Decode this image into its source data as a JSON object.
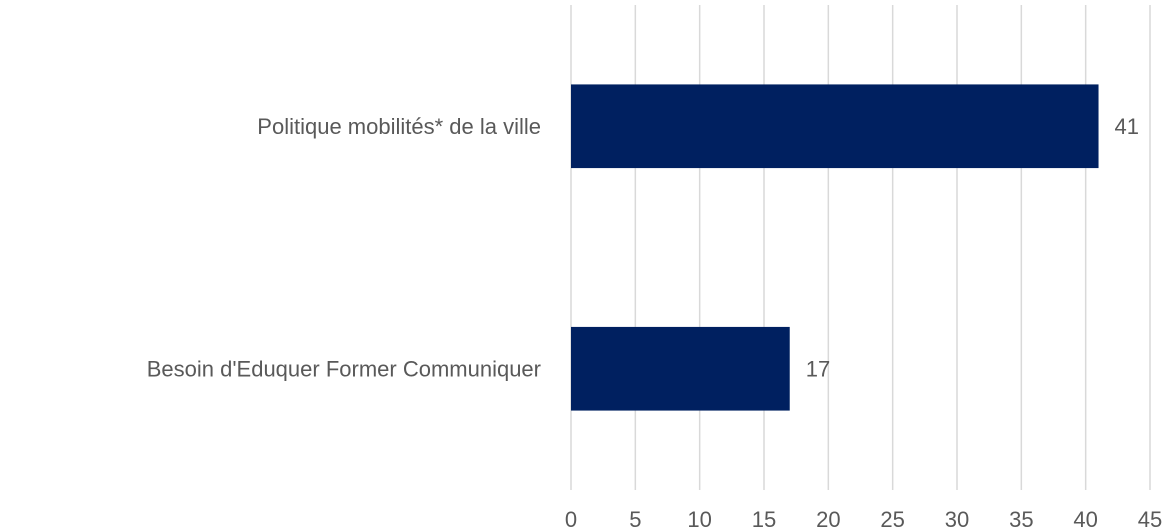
{
  "chart_data": {
    "type": "bar",
    "orientation": "horizontal",
    "categories": [
      "Politique mobilités* de la ville",
      "Besoin d'Eduquer Former Communiquer"
    ],
    "values": [
      41,
      17
    ],
    "color": "#002060",
    "xlim": [
      0,
      45
    ],
    "xticks": [
      0,
      5,
      10,
      15,
      20,
      25,
      30,
      35,
      40,
      45
    ],
    "grid": true
  }
}
